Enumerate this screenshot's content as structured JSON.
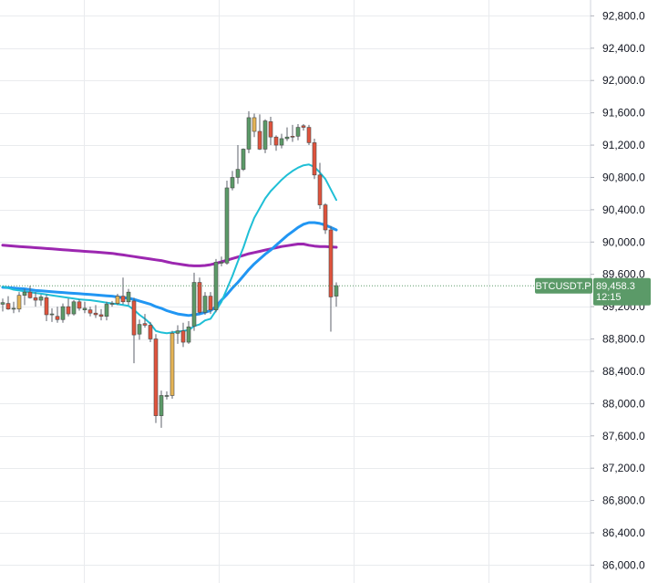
{
  "chart_data": {
    "type": "candlestick",
    "symbol_tag": "BTCUSDT.P",
    "last_price_label": "89,458.3",
    "countdown_label": "12:15",
    "last_price": 89458.3,
    "ylim": [
      85920,
      92900
    ],
    "y_ticks": [
      {
        "value": 92800,
        "label": "92,800.0"
      },
      {
        "value": 92400,
        "label": "92,400.0"
      },
      {
        "value": 92000,
        "label": "92,000.0"
      },
      {
        "value": 91600,
        "label": "91,600.0"
      },
      {
        "value": 91200,
        "label": "91,200.0"
      },
      {
        "value": 90800,
        "label": "90,800.0"
      },
      {
        "value": 90400,
        "label": "90,400.0"
      },
      {
        "value": 90000,
        "label": "90,000.0"
      },
      {
        "value": 89600,
        "label": "89,600.0"
      },
      {
        "value": 89200,
        "label": "89,200.0"
      },
      {
        "value": 88800,
        "label": "88,800.0"
      },
      {
        "value": 88400,
        "label": "88,400.0"
      },
      {
        "value": 88000,
        "label": "88,000.0"
      },
      {
        "value": 87600,
        "label": "87,600.0"
      },
      {
        "value": 87200,
        "label": "87,200.0"
      },
      {
        "value": 86800,
        "label": "86,800.0"
      },
      {
        "value": 86400,
        "label": "86,400.0"
      },
      {
        "value": 86000,
        "label": "86,000.0"
      }
    ],
    "grid": true,
    "colors": {
      "up": "#5b9a68",
      "down": "#e0533c",
      "doji": "#e5b455",
      "ma_fast": "#1fbfd6",
      "ma_mid": "#2196f3",
      "ma_slow": "#9c27b0",
      "price_tag": "#5b9a68",
      "grid": "#e9ebee",
      "axis_text": "#131722"
    },
    "candles": [
      {
        "o": 89230,
        "h": 89300,
        "l": 89140,
        "c": 89250,
        "color": "up"
      },
      {
        "o": 89240,
        "h": 89330,
        "l": 89160,
        "c": 89170,
        "color": "down"
      },
      {
        "o": 89180,
        "h": 89260,
        "l": 89120,
        "c": 89180,
        "color": "up"
      },
      {
        "o": 89170,
        "h": 89380,
        "l": 89130,
        "c": 89340,
        "color": "doji"
      },
      {
        "o": 89340,
        "h": 89420,
        "l": 89220,
        "c": 89380,
        "color": "up"
      },
      {
        "o": 89380,
        "h": 89460,
        "l": 89300,
        "c": 89310,
        "color": "down"
      },
      {
        "o": 89310,
        "h": 89380,
        "l": 89200,
        "c": 89280,
        "color": "down"
      },
      {
        "o": 89280,
        "h": 89350,
        "l": 89210,
        "c": 89320,
        "color": "up"
      },
      {
        "o": 89310,
        "h": 89350,
        "l": 89020,
        "c": 89100,
        "color": "down"
      },
      {
        "o": 89100,
        "h": 89180,
        "l": 89010,
        "c": 89110,
        "color": "up"
      },
      {
        "o": 89080,
        "h": 89200,
        "l": 89000,
        "c": 89040,
        "color": "down"
      },
      {
        "o": 89040,
        "h": 89240,
        "l": 89000,
        "c": 89200,
        "color": "up"
      },
      {
        "o": 89200,
        "h": 89300,
        "l": 89080,
        "c": 89110,
        "color": "down"
      },
      {
        "o": 89110,
        "h": 89280,
        "l": 89090,
        "c": 89260,
        "color": "up"
      },
      {
        "o": 89260,
        "h": 89290,
        "l": 89150,
        "c": 89180,
        "color": "down"
      },
      {
        "o": 89180,
        "h": 89260,
        "l": 89120,
        "c": 89160,
        "color": "up"
      },
      {
        "o": 89160,
        "h": 89200,
        "l": 89080,
        "c": 89120,
        "color": "down"
      },
      {
        "o": 89120,
        "h": 89220,
        "l": 89060,
        "c": 89100,
        "color": "down"
      },
      {
        "o": 89100,
        "h": 89170,
        "l": 89030,
        "c": 89080,
        "color": "down"
      },
      {
        "o": 89080,
        "h": 89260,
        "l": 89030,
        "c": 89230,
        "color": "up"
      },
      {
        "o": 89230,
        "h": 89270,
        "l": 89200,
        "c": 89240,
        "color": "up"
      },
      {
        "o": 89240,
        "h": 89360,
        "l": 89220,
        "c": 89330,
        "color": "doji"
      },
      {
        "o": 89330,
        "h": 89560,
        "l": 89230,
        "c": 89260,
        "color": "down"
      },
      {
        "o": 89260,
        "h": 89420,
        "l": 89220,
        "c": 89380,
        "color": "up"
      },
      {
        "o": 89270,
        "h": 89310,
        "l": 88500,
        "c": 88850,
        "color": "down"
      },
      {
        "o": 88860,
        "h": 89040,
        "l": 88790,
        "c": 88980,
        "color": "up"
      },
      {
        "o": 88990,
        "h": 89110,
        "l": 88940,
        "c": 88970,
        "color": "down"
      },
      {
        "o": 88970,
        "h": 89010,
        "l": 88760,
        "c": 88800,
        "color": "down"
      },
      {
        "o": 88800,
        "h": 88860,
        "l": 87760,
        "c": 87850,
        "color": "down"
      },
      {
        "o": 87850,
        "h": 88160,
        "l": 87700,
        "c": 88100,
        "color": "up"
      },
      {
        "o": 88100,
        "h": 88150,
        "l": 88050,
        "c": 88100,
        "color": "up"
      },
      {
        "o": 88100,
        "h": 88900,
        "l": 88060,
        "c": 88870,
        "color": "doji"
      },
      {
        "o": 88870,
        "h": 88970,
        "l": 88740,
        "c": 88900,
        "color": "up"
      },
      {
        "o": 88900,
        "h": 89000,
        "l": 88700,
        "c": 88760,
        "color": "down"
      },
      {
        "o": 88760,
        "h": 89020,
        "l": 88740,
        "c": 88950,
        "color": "up"
      },
      {
        "o": 88960,
        "h": 89620,
        "l": 88900,
        "c": 89500,
        "color": "up"
      },
      {
        "o": 89500,
        "h": 89560,
        "l": 89110,
        "c": 89130,
        "color": "down"
      },
      {
        "o": 89130,
        "h": 89380,
        "l": 89100,
        "c": 89330,
        "color": "up"
      },
      {
        "o": 89330,
        "h": 89380,
        "l": 89110,
        "c": 89160,
        "color": "down"
      },
      {
        "o": 89160,
        "h": 89790,
        "l": 89130,
        "c": 89750,
        "color": "up"
      },
      {
        "o": 89750,
        "h": 89820,
        "l": 89700,
        "c": 89740,
        "color": "up"
      },
      {
        "o": 89740,
        "h": 90760,
        "l": 89720,
        "c": 90670,
        "color": "up"
      },
      {
        "o": 90670,
        "h": 90880,
        "l": 90640,
        "c": 90800,
        "color": "up"
      },
      {
        "o": 90800,
        "h": 91200,
        "l": 90720,
        "c": 90900,
        "color": "up"
      },
      {
        "o": 90900,
        "h": 91160,
        "l": 90880,
        "c": 91150,
        "color": "up"
      },
      {
        "o": 91150,
        "h": 91620,
        "l": 91100,
        "c": 91540,
        "color": "up"
      },
      {
        "o": 91540,
        "h": 91590,
        "l": 91300,
        "c": 91370,
        "color": "doji"
      },
      {
        "o": 91370,
        "h": 91580,
        "l": 91140,
        "c": 91150,
        "color": "down"
      },
      {
        "o": 91150,
        "h": 91520,
        "l": 91100,
        "c": 91500,
        "color": "up"
      },
      {
        "o": 91490,
        "h": 91550,
        "l": 91200,
        "c": 91300,
        "color": "down"
      },
      {
        "o": 91300,
        "h": 91320,
        "l": 91130,
        "c": 91200,
        "color": "down"
      },
      {
        "o": 91200,
        "h": 91340,
        "l": 91160,
        "c": 91280,
        "color": "up"
      },
      {
        "o": 91280,
        "h": 91420,
        "l": 91250,
        "c": 91300,
        "color": "up"
      },
      {
        "o": 91300,
        "h": 91450,
        "l": 91240,
        "c": 91310,
        "color": "down"
      },
      {
        "o": 91310,
        "h": 91460,
        "l": 91260,
        "c": 91420,
        "color": "up"
      },
      {
        "o": 91440,
        "h": 91460,
        "l": 91380,
        "c": 91420,
        "color": "down"
      },
      {
        "o": 91420,
        "h": 91450,
        "l": 91200,
        "c": 91230,
        "color": "down"
      },
      {
        "o": 91230,
        "h": 91280,
        "l": 90780,
        "c": 90830,
        "color": "down"
      },
      {
        "o": 90830,
        "h": 90980,
        "l": 90410,
        "c": 90460,
        "color": "down"
      },
      {
        "o": 90460,
        "h": 90480,
        "l": 90100,
        "c": 90150,
        "color": "down"
      },
      {
        "o": 90150,
        "h": 90200,
        "l": 88890,
        "c": 89320,
        "color": "down"
      },
      {
        "o": 89330,
        "h": 89500,
        "l": 89200,
        "c": 89460,
        "color": "up"
      }
    ],
    "ma_fast": [
      89450,
      89430,
      89410,
      89400,
      89390,
      89380,
      89370,
      89360,
      89350,
      89340,
      89330,
      89320,
      89310,
      89300,
      89290,
      89285,
      89280,
      89270,
      89260,
      89250,
      89240,
      89230,
      89220,
      89210,
      89160,
      89100,
      89050,
      88990,
      88900,
      88880,
      88870,
      88880,
      88890,
      88900,
      88910,
      88960,
      88980,
      89030,
      89050,
      89150,
      89260,
      89420,
      89580,
      89760,
      89930,
      90130,
      90300,
      90420,
      90540,
      90630,
      90700,
      90770,
      90830,
      90880,
      90920,
      90950,
      90960,
      90930,
      90860,
      90780,
      90650,
      90520
    ],
    "ma_mid": [
      89440,
      89435,
      89430,
      89425,
      89420,
      89410,
      89400,
      89395,
      89390,
      89385,
      89380,
      89375,
      89370,
      89365,
      89360,
      89355,
      89350,
      89345,
      89340,
      89335,
      89330,
      89320,
      89310,
      89305,
      89290,
      89270,
      89250,
      89230,
      89200,
      89180,
      89150,
      89130,
      89110,
      89100,
      89090,
      89100,
      89110,
      89130,
      89150,
      89200,
      89280,
      89350,
      89430,
      89500,
      89580,
      89660,
      89730,
      89790,
      89850,
      89900,
      89960,
      90020,
      90080,
      90130,
      90180,
      90220,
      90240,
      90240,
      90230,
      90210,
      90180,
      90150
    ],
    "ma_slow": [
      89960,
      89955,
      89950,
      89945,
      89940,
      89935,
      89930,
      89925,
      89920,
      89915,
      89910,
      89905,
      89900,
      89895,
      89890,
      89885,
      89880,
      89875,
      89870,
      89865,
      89860,
      89850,
      89840,
      89830,
      89820,
      89810,
      89800,
      89790,
      89780,
      89770,
      89755,
      89740,
      89730,
      89720,
      89710,
      89705,
      89705,
      89710,
      89720,
      89735,
      89755,
      89775,
      89795,
      89815,
      89835,
      89855,
      89870,
      89885,
      89900,
      89915,
      89930,
      89945,
      89955,
      89965,
      89975,
      89975,
      89960,
      89950,
      89945,
      89945,
      89940,
      89935
    ]
  }
}
